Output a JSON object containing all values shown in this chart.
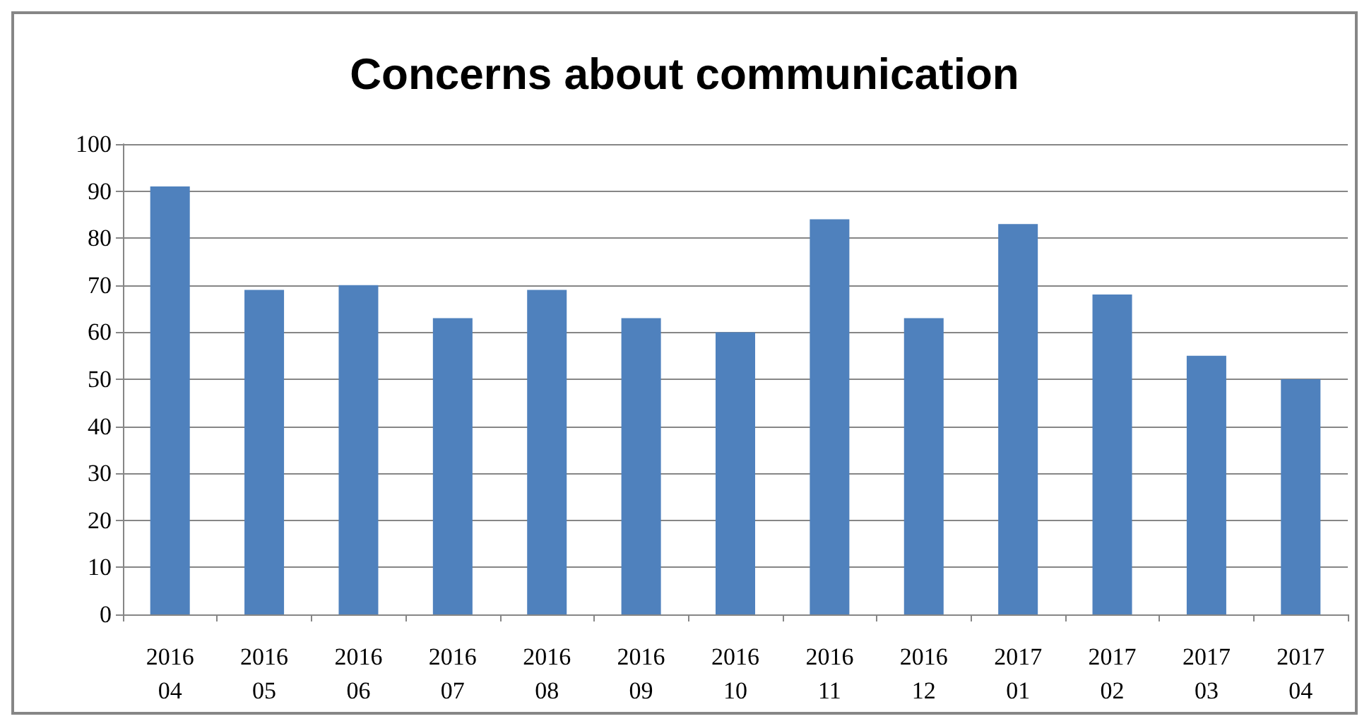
{
  "chart_data": {
    "type": "bar",
    "title": "Concerns about communication",
    "categories": [
      "2016\n04",
      "2016\n05",
      "2016\n06",
      "2016\n07",
      "2016\n08",
      "2016\n09",
      "2016\n10",
      "2016\n11",
      "2016\n12",
      "2017\n01",
      "2017\n02",
      "2017\n03",
      "2017\n04"
    ],
    "values": [
      91,
      69,
      70,
      63,
      69,
      63,
      60,
      84,
      63,
      83,
      68,
      55,
      50
    ],
    "color": "#4f81bd",
    "ylim": [
      0,
      100
    ],
    "yticks": [
      0,
      10,
      20,
      30,
      40,
      50,
      60,
      70,
      80,
      90,
      100
    ],
    "grid": "y"
  }
}
